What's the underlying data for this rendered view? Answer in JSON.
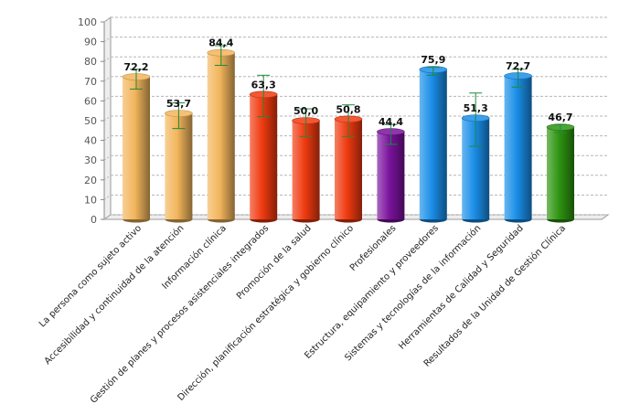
{
  "chart_data": {
    "type": "bar",
    "title": "",
    "xlabel": "",
    "ylabel": "",
    "ylim": [
      0,
      100
    ],
    "yticks": [
      "0",
      "10",
      "20",
      "30",
      "40",
      "50",
      "60",
      "70",
      "80",
      "90",
      "100"
    ],
    "grid": true,
    "categories": [
      "La persona como sujeto activo",
      "Accesibilidad y continuidad de la atención",
      "Información clínica",
      "Gestión de planes y procesos asistenciales integrados",
      "Promoción de la salud",
      "Dirección, planificación estratégica y gobierno clínico",
      "Profesionales",
      "Estructura, equipamiento y proveedores",
      "Sistemas y tecnologías de la información",
      "Herramientas de Calidad y Seguridad",
      "Resultados de la Unidad de Gestión Clínica"
    ],
    "values": [
      72.2,
      53.7,
      84.4,
      63.3,
      50.0,
      50.8,
      44.4,
      75.9,
      51.3,
      72.7,
      46.7
    ],
    "value_labels": [
      "72,2",
      "53,7",
      "84,4",
      "63,3",
      "50,0",
      "50,8",
      "44,4",
      "75,9",
      "51,3",
      "72,7",
      "46,7"
    ],
    "error_low": [
      66,
      46,
      78,
      52,
      42,
      42,
      38,
      73,
      37,
      67,
      44
    ],
    "error_high": [
      76,
      59,
      88,
      73,
      56,
      58,
      48,
      77,
      64,
      76,
      48
    ],
    "bar_colors": [
      "#f2b55c",
      "#f2b55c",
      "#f2b55c",
      "#f03a10",
      "#f03a10",
      "#f03a10",
      "#7a139c",
      "#1a8ee8",
      "#1a8ee8",
      "#1a8ee8",
      "#2e9410"
    ],
    "error_bar_color": "#1d8a3c"
  }
}
